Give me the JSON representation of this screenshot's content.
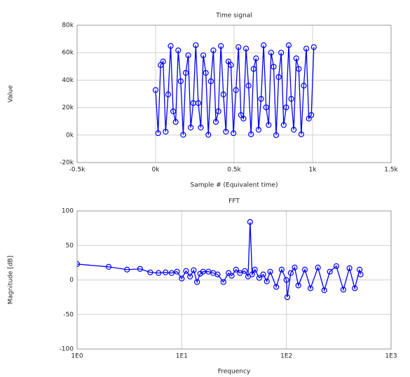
{
  "chart_data": [
    {
      "type": "line",
      "title": "Time signal",
      "xlabel": "Sample # (Equivalent time)",
      "ylabel": "Value",
      "x": [
        0,
        16,
        32,
        48,
        64,
        80,
        96,
        112,
        128,
        144,
        160,
        176,
        192,
        208,
        224,
        240,
        256,
        272,
        288,
        304,
        320,
        336,
        352,
        368,
        384,
        400,
        416,
        432,
        448,
        464,
        480,
        496,
        512,
        528,
        544,
        560,
        576,
        592,
        608,
        624,
        640,
        656,
        672,
        688,
        704,
        720,
        736,
        752,
        768,
        784,
        800,
        816,
        832,
        848,
        864,
        880,
        896,
        912,
        928,
        944,
        960,
        976,
        992,
        1008
      ],
      "series": [
        {
          "name": "Time signal",
          "color": "#0000ff",
          "values": [
            32800,
            1400,
            51000,
            53600,
            2500,
            29600,
            64900,
            17300,
            9600,
            61700,
            39200,
            200,
            45300,
            58100,
            5500,
            23300,
            65500,
            23300,
            5500,
            58100,
            45300,
            200,
            39200,
            61700,
            9600,
            17300,
            64900,
            29600,
            2500,
            53600,
            51000,
            1400,
            32800,
            64100,
            14600,
            12000,
            63000,
            36000,
            600,
            48200,
            55900,
            3900,
            26400,
            65400,
            20200,
            7400,
            60000,
            49800,
            0,
            42300,
            60000,
            7400,
            20200,
            65400,
            26400,
            3900,
            55900,
            48200,
            600,
            36000,
            63000,
            12000,
            14600,
            64100
          ]
        }
      ],
      "xlim": [
        -500,
        1500
      ],
      "xticks": [
        {
          "value": -500,
          "label": "-0.5k"
        },
        {
          "value": 0,
          "label": "0k"
        },
        {
          "value": 500,
          "label": "0.5k"
        },
        {
          "value": 1000,
          "label": "1k"
        },
        {
          "value": 1500,
          "label": "1.5k"
        }
      ],
      "ylim": [
        -20000,
        80000
      ],
      "yticks": [
        {
          "value": -20000,
          "label": "-20k"
        },
        {
          "value": 0,
          "label": "0k"
        },
        {
          "value": 20000,
          "label": "20k"
        },
        {
          "value": 40000,
          "label": "40k"
        },
        {
          "value": 60000,
          "label": "60k"
        },
        {
          "value": 80000,
          "label": "80k"
        }
      ],
      "grid": true
    },
    {
      "type": "line",
      "title": "FFT",
      "xlabel": "Frequency",
      "ylabel": "Magnitude [dB]",
      "xscale": "log",
      "x": [
        1,
        2,
        3,
        4,
        5,
        6,
        7,
        8,
        9,
        10,
        11,
        12,
        13,
        14,
        15,
        16,
        18,
        20,
        22,
        25,
        28,
        30,
        33,
        36,
        40,
        43,
        45,
        47,
        50,
        55,
        60,
        65,
        70,
        80,
        90,
        100,
        102,
        110,
        120,
        130,
        150,
        170,
        200,
        230,
        260,
        300,
        350,
        400,
        450,
        500,
        512
      ],
      "series": [
        {
          "name": "FFT",
          "color": "#0000ff",
          "values": [
            23,
            19,
            15,
            16,
            11,
            10,
            11,
            10,
            12,
            2,
            13,
            5,
            14,
            -3,
            9,
            12,
            12,
            10,
            8,
            -3,
            10,
            6,
            15,
            10,
            13,
            5,
            84,
            8,
            15,
            3,
            8,
            -2,
            12,
            -10,
            15,
            0,
            -25,
            10,
            18,
            -8,
            15,
            -12,
            18,
            -15,
            12,
            20,
            -14,
            17,
            -12,
            15,
            8
          ]
        }
      ],
      "xlim": [
        1,
        1000
      ],
      "xticks": [
        {
          "value": 1,
          "label": "1E0"
        },
        {
          "value": 10,
          "label": "1E1"
        },
        {
          "value": 100,
          "label": "1E2"
        },
        {
          "value": 1000,
          "label": "1E3"
        }
      ],
      "ylim": [
        -100,
        100
      ],
      "yticks": [
        -100,
        -50,
        0,
        50,
        100
      ],
      "grid": true
    }
  ]
}
